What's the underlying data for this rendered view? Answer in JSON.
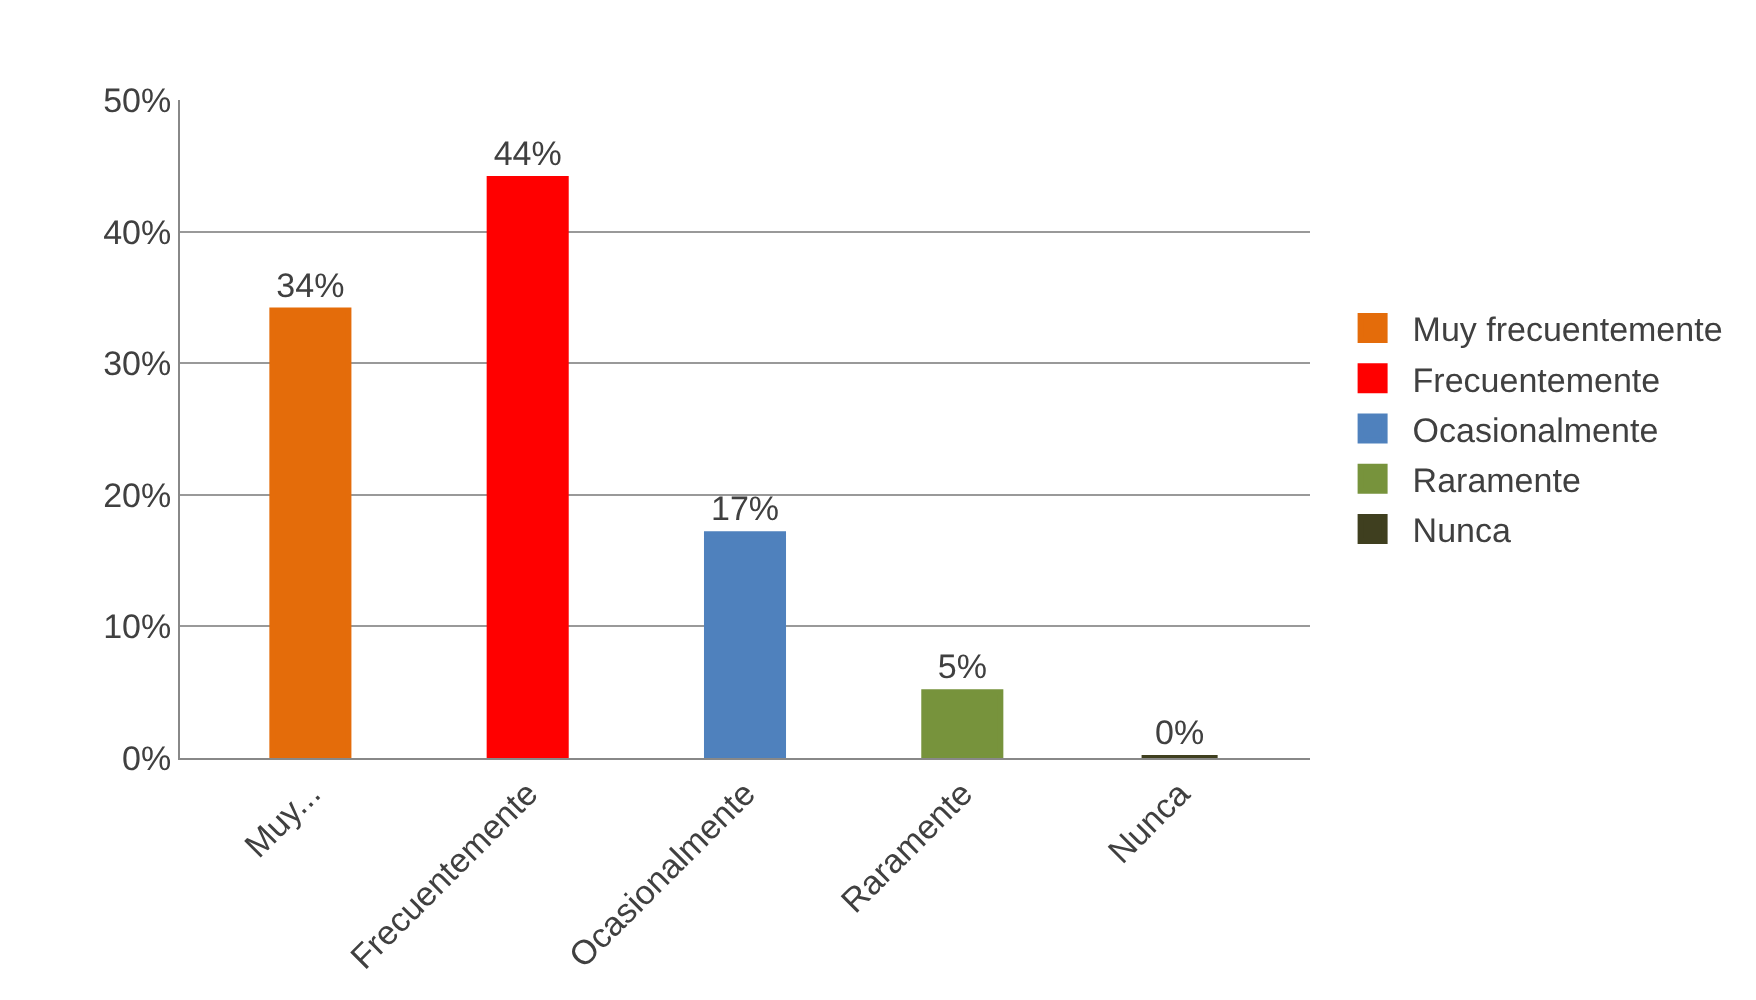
{
  "chart_data": {
    "type": "bar",
    "categories": [
      "Muy...",
      "Frecuentemente",
      "Ocasionalmente",
      "Raramente",
      "Nunca"
    ],
    "series": [
      {
        "name": "Muy frecuentemente",
        "color": "#e46c0a",
        "values": [
          34,
          null,
          null,
          null,
          null
        ],
        "value_labels": [
          "34%",
          null,
          null,
          null,
          null
        ]
      },
      {
        "name": "Frecuentemente",
        "color": "#ff0000",
        "values": [
          null,
          44,
          null,
          null,
          null
        ],
        "value_labels": [
          null,
          "44%",
          null,
          null,
          null
        ]
      },
      {
        "name": "Ocasionalmente",
        "color": "#4f81bd",
        "values": [
          null,
          null,
          17,
          null,
          null
        ],
        "value_labels": [
          null,
          null,
          "17%",
          null,
          null
        ]
      },
      {
        "name": "Raramente",
        "color": "#77933c",
        "values": [
          null,
          null,
          null,
          5,
          null
        ],
        "value_labels": [
          null,
          null,
          null,
          "5%",
          null
        ]
      },
      {
        "name": "Nunca",
        "color": "#3f3f1f",
        "values": [
          null,
          null,
          null,
          null,
          0
        ],
        "value_labels": [
          null,
          null,
          null,
          null,
          "0%"
        ]
      }
    ],
    "ylim": [
      0,
      50
    ],
    "yticks": [
      {
        "value": 0,
        "label": "0%"
      },
      {
        "value": 10,
        "label": "10%"
      },
      {
        "value": 20,
        "label": "20%"
      },
      {
        "value": 30,
        "label": "30%"
      },
      {
        "value": 40,
        "label": "40%"
      },
      {
        "value": 50,
        "label": "50%"
      }
    ],
    "grid": "y",
    "legend": "right"
  }
}
